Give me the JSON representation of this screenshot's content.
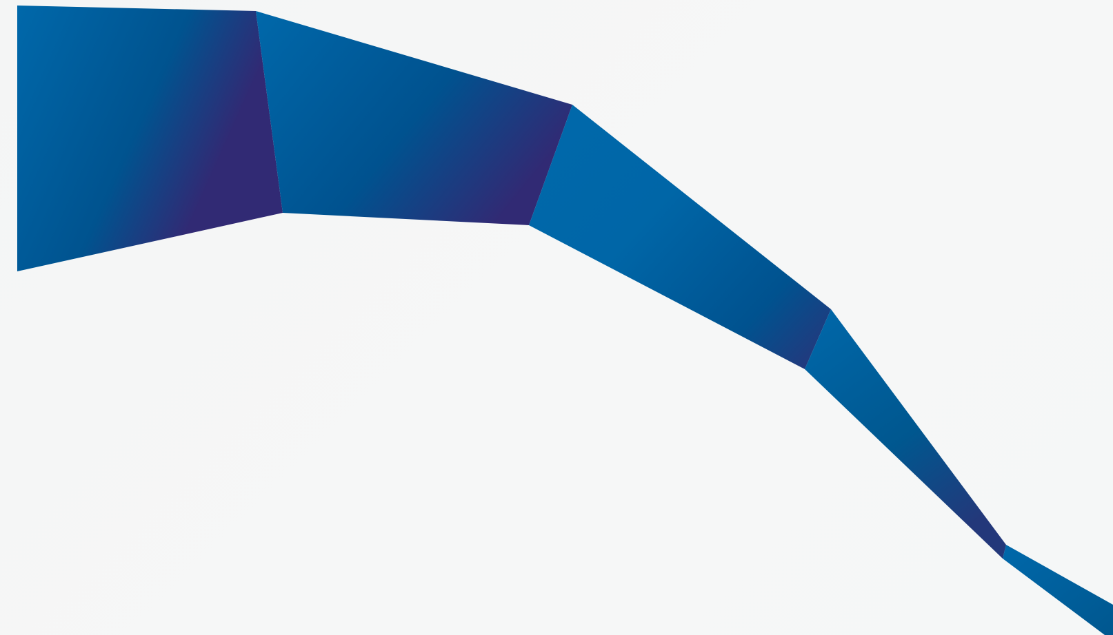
{
  "decoration": {
    "name": "folded-ribbon",
    "colors": {
      "background": "#f5f6f6",
      "ribbon_light": "#0068aa",
      "ribbon_mid": "#00538f",
      "ribbon_dark": "#312a74"
    },
    "segment_count": 5
  }
}
